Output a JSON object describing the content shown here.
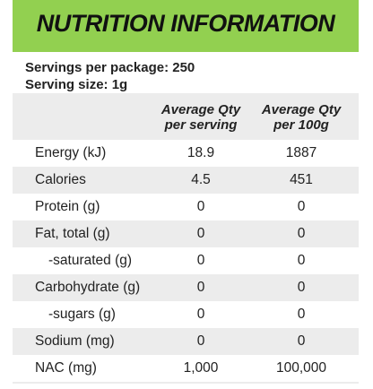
{
  "header": {
    "title": "NUTRITION INFORMATION"
  },
  "servings": {
    "per_package": "Servings per package: 250",
    "size": "Serving size: 1g"
  },
  "columns": {
    "per_serving": [
      "Average Qty",
      "per serving"
    ],
    "per_100g": [
      "Average Qty",
      "per 100g"
    ]
  },
  "rows": [
    {
      "label": "Energy (kJ)",
      "per_serving": "18.9",
      "per_100g": "1887"
    },
    {
      "label": "Calories",
      "per_serving": "4.5",
      "per_100g": "451"
    },
    {
      "label": "Protein (g)",
      "per_serving": "0",
      "per_100g": "0"
    },
    {
      "label": "Fat, total (g)",
      "per_serving": "0",
      "per_100g": "0"
    },
    {
      "label": "-saturated (g)",
      "per_serving": "0",
      "per_100g": "0"
    },
    {
      "label": "Carbohydrate (g)",
      "per_serving": "0",
      "per_100g": "0"
    },
    {
      "label": "-sugars (g)",
      "per_serving": "0",
      "per_100g": "0"
    },
    {
      "label": "Sodium (mg)",
      "per_serving": "0",
      "per_100g": "0"
    },
    {
      "label": "NAC (mg)",
      "per_serving": "1,000",
      "per_100g": "100,000"
    }
  ],
  "colors": {
    "header_green": "#92d050",
    "band_grey": "#ececec",
    "band_white": "#ffffff"
  }
}
